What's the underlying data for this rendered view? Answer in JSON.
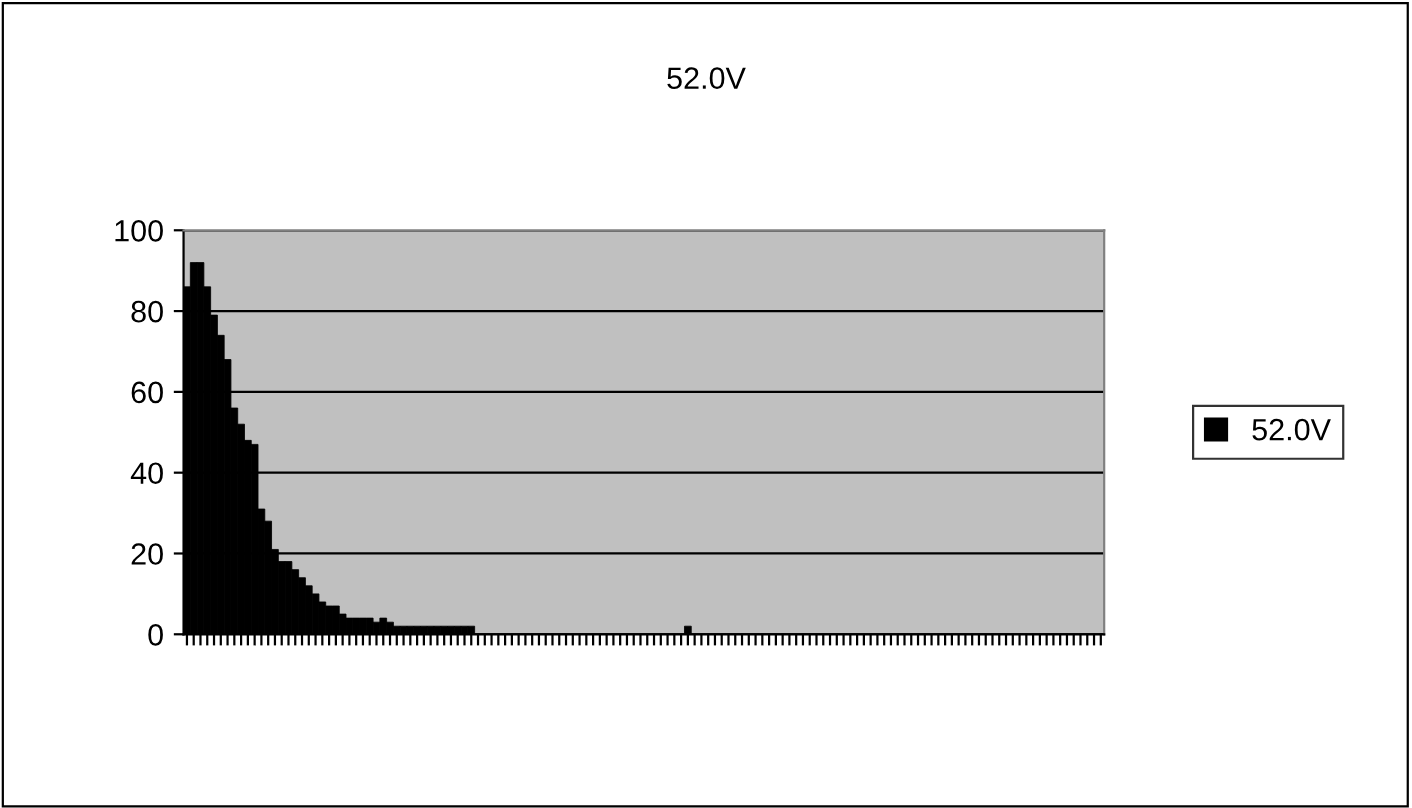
{
  "chart_data": {
    "type": "bar",
    "title": "52.0V",
    "categories": [
      null,
      null,
      null,
      null,
      null,
      null,
      null,
      null,
      null,
      null,
      null,
      null,
      null,
      null,
      null,
      null,
      null,
      null,
      null,
      null,
      null,
      null,
      null,
      null,
      null,
      null,
      null,
      null,
      null,
      null,
      null,
      null,
      null,
      null,
      null,
      null,
      null,
      null,
      null,
      null,
      null,
      null,
      null,
      null,
      null,
      null,
      null,
      null,
      null,
      null,
      null,
      null,
      null,
      null,
      null,
      null,
      null,
      null,
      null,
      null,
      null,
      null,
      null,
      null,
      null,
      null,
      null,
      null,
      null,
      null,
      null,
      null,
      null,
      null,
      null,
      null,
      null,
      null,
      null,
      null,
      null,
      null,
      null,
      null,
      null,
      null,
      null,
      null,
      null,
      null,
      null,
      null,
      null,
      null,
      null,
      null,
      null,
      null,
      null,
      null,
      null,
      null,
      null,
      null,
      null,
      null,
      null,
      null,
      null,
      null,
      null,
      null,
      null,
      null,
      null,
      null,
      null,
      null,
      null,
      null,
      null,
      null,
      null,
      null,
      null,
      null,
      null,
      null,
      null,
      null,
      null,
      null,
      null,
      null,
      null,
      null
    ],
    "series": [
      {
        "name": "52.0V",
        "color": "#000000",
        "values": [
          86,
          92,
          92,
          86,
          79,
          74,
          68,
          56,
          52,
          48,
          47,
          31,
          28,
          21,
          18,
          18,
          16,
          14,
          12,
          10,
          8,
          7,
          7,
          5,
          4,
          4,
          4,
          4,
          3,
          4,
          3,
          2,
          2,
          2,
          2,
          2,
          2,
          2,
          2,
          2,
          2,
          2,
          2,
          0,
          0,
          0,
          0,
          0,
          0,
          0,
          0,
          0,
          0,
          0,
          0,
          0,
          0,
          0,
          0,
          0,
          0,
          0,
          0,
          0,
          0,
          0,
          0,
          0,
          0,
          0,
          0,
          0,
          0,
          0,
          2,
          0,
          0,
          0,
          0,
          0,
          0,
          0,
          0,
          0,
          0,
          0,
          0,
          0,
          0,
          0,
          0,
          0,
          0,
          0,
          0,
          0,
          0,
          0,
          0,
          0,
          0,
          0,
          0,
          0,
          0,
          0,
          0,
          0,
          0,
          0,
          0,
          0,
          0,
          0,
          0,
          0,
          0,
          0,
          0,
          0,
          0,
          0,
          0,
          0,
          0,
          0,
          0,
          0,
          0,
          0,
          0,
          0,
          0,
          0,
          0,
          0
        ]
      }
    ],
    "ylim": [
      0,
      100
    ],
    "yticks": [
      0,
      20,
      40,
      60,
      80,
      100
    ],
    "grid": "y",
    "legend": "right",
    "tick_labels": "y"
  }
}
